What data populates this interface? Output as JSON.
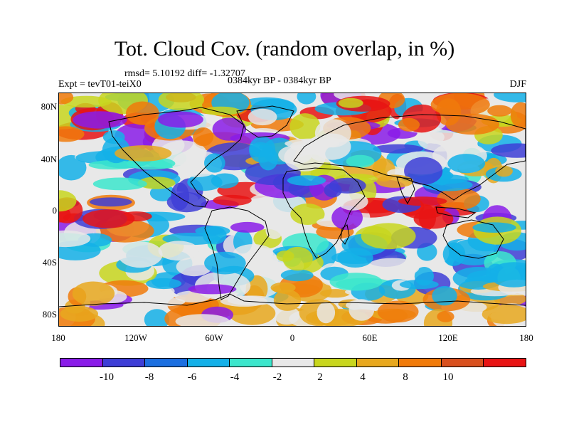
{
  "title": "Tot. Cloud Cov. (random overlap, in %)",
  "stats": "rmsd= 5.10192 diff= -1.32707",
  "experiment": "Expt = tevT01-teiX0",
  "period": "0384kyr BP - 0384kyr BP",
  "season": "DJF",
  "lat_ticks": [
    "80N",
    "40N",
    "0",
    "40S",
    "80S"
  ],
  "lon_ticks": [
    "180",
    "120W",
    "60W",
    "0",
    "60E",
    "120E",
    "180"
  ],
  "colorbar": {
    "labels": [
      "-10",
      "-8",
      "-6",
      "-4",
      "-2",
      "2",
      "4",
      "8",
      "10"
    ],
    "colors": [
      "#8a1ce8",
      "#3e3ed6",
      "#1c6fe0",
      "#14b0e8",
      "#3ce6cc",
      "#e8e8e8",
      "#c8d61e",
      "#e8a81e",
      "#f07a0a",
      "#d8501e",
      "#e81414"
    ]
  },
  "map_legend_bins": {
    "note_levels": [
      -10,
      -8,
      -6,
      -4,
      -2,
      2,
      4,
      8,
      10
    ]
  }
}
